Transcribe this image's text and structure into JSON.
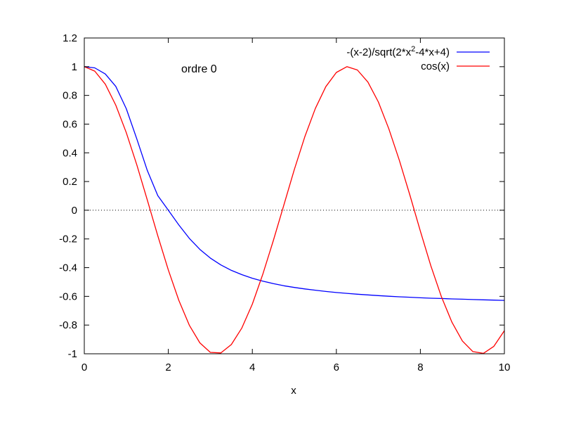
{
  "chart_data": {
    "type": "line",
    "title": "",
    "xlabel": "x",
    "ylabel": "",
    "xlim": [
      0,
      10
    ],
    "ylim": [
      -1,
      1.2
    ],
    "x_ticks": [
      "0",
      "2",
      "4",
      "6",
      "8",
      "10"
    ],
    "y_ticks": [
      "1.2",
      "1",
      "0.8",
      "0.6",
      "0.4",
      "0.2",
      "0",
      "-0.2",
      "-0.4",
      "-0.6",
      "-0.8",
      "-1"
    ],
    "x_tick_values": [
      0,
      2,
      4,
      6,
      8,
      10
    ],
    "y_tick_values": [
      1.2,
      1,
      0.8,
      0.6,
      0.4,
      0.2,
      0,
      -0.2,
      -0.4,
      -0.6,
      -0.8,
      -1
    ],
    "annotation": "ordre 0",
    "zero_line": true,
    "legend_position": "top-right",
    "series": [
      {
        "name_main": "-(x-2)/sqrt(2*x",
        "name_sup": "2",
        "name_tail": "-4*x+4)",
        "color": "#0000ff",
        "x": [
          0,
          0.25,
          0.5,
          0.75,
          1,
          1.25,
          1.5,
          1.75,
          2,
          2.25,
          2.5,
          2.75,
          3,
          3.25,
          3.5,
          3.75,
          4,
          4.25,
          4.5,
          4.75,
          5,
          5.25,
          5.5,
          5.75,
          6,
          6.25,
          6.5,
          6.75,
          7,
          7.25,
          7.5,
          7.75,
          8,
          8.25,
          8.5,
          8.75,
          9,
          9.25,
          9.5,
          9.75,
          10
        ],
        "y": [
          1,
          0.992,
          0.949,
          0.863,
          0.707,
          0.496,
          0.277,
          0.102,
          0,
          -0.103,
          -0.196,
          -0.273,
          -0.333,
          -0.381,
          -0.419,
          -0.449,
          -0.474,
          -0.494,
          -0.511,
          -0.526,
          -0.538,
          -0.548,
          -0.557,
          -0.566,
          -0.573,
          -0.579,
          -0.585,
          -0.59,
          -0.595,
          -0.599,
          -0.603,
          -0.606,
          -0.61,
          -0.613,
          -0.615,
          -0.618,
          -0.62,
          -0.622,
          -0.624,
          -0.626,
          -0.628
        ]
      },
      {
        "name": "cos(x)",
        "color": "#ff0000",
        "x": [
          0,
          0.25,
          0.5,
          0.75,
          1,
          1.25,
          1.5,
          1.75,
          2,
          2.25,
          2.5,
          2.75,
          3,
          3.25,
          3.5,
          3.75,
          4,
          4.25,
          4.5,
          4.75,
          5,
          5.25,
          5.5,
          5.75,
          6,
          6.25,
          6.5,
          6.75,
          7,
          7.25,
          7.5,
          7.75,
          8,
          8.25,
          8.5,
          8.75,
          9,
          9.25,
          9.5,
          9.75,
          10
        ],
        "y": [
          1,
          0.969,
          0.878,
          0.732,
          0.54,
          0.315,
          0.071,
          -0.178,
          -0.416,
          -0.628,
          -0.801,
          -0.924,
          -0.99,
          -0.994,
          -0.936,
          -0.82,
          -0.654,
          -0.446,
          -0.211,
          0.037,
          0.284,
          0.512,
          0.709,
          0.861,
          0.96,
          1.0,
          0.977,
          0.893,
          0.754,
          0.567,
          0.347,
          0.105,
          -0.146,
          -0.387,
          -0.602,
          -0.78,
          -0.911,
          -0.985,
          -0.997,
          -0.948,
          -0.839
        ]
      }
    ]
  }
}
